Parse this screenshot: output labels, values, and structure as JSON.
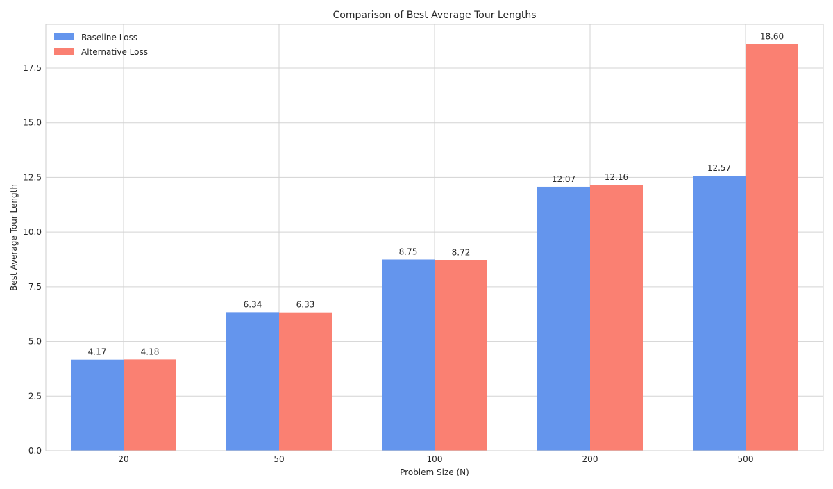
{
  "chart_data": {
    "type": "bar",
    "title": "Comparison of Best Average Tour Lengths",
    "xlabel": "Problem Size (N)",
    "ylabel": "Best Average Tour Length",
    "categories": [
      "20",
      "50",
      "100",
      "200",
      "500"
    ],
    "series": [
      {
        "name": "Baseline Loss",
        "values": [
          4.17,
          6.34,
          8.75,
          12.07,
          12.57
        ],
        "labels": [
          "4.17",
          "6.34",
          "8.75",
          "12.07",
          "12.57"
        ],
        "color": "#6495ED"
      },
      {
        "name": "Alternative Loss",
        "values": [
          4.18,
          6.33,
          8.72,
          12.16,
          18.6
        ],
        "labels": [
          "4.18",
          "6.33",
          "8.72",
          "12.16",
          "18.60"
        ],
        "color": "#FA8072"
      }
    ],
    "ylim": [
      0,
      19.5
    ],
    "yticks": [
      0,
      2.5,
      5,
      7.5,
      10,
      12.5,
      15,
      17.5
    ],
    "ytick_labels": [
      "0.0",
      "2.5",
      "5.0",
      "7.5",
      "10.0",
      "12.5",
      "15.0",
      "17.5"
    ],
    "grid": true,
    "legend_position": "top-left"
  }
}
